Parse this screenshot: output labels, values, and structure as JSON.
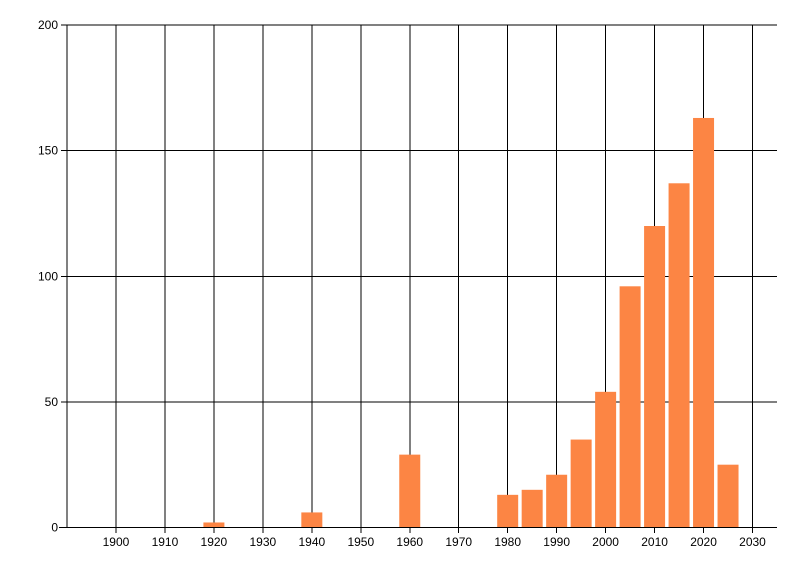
{
  "chart_data": {
    "type": "bar",
    "title": "",
    "xlabel": "",
    "ylabel": "",
    "x": [
      1920,
      1940,
      1960,
      1980,
      1985,
      1990,
      1995,
      2000,
      2005,
      2010,
      2015,
      2020,
      2025
    ],
    "values": [
      2,
      6,
      29,
      13,
      15,
      21,
      35,
      54,
      96,
      120,
      137,
      163,
      25
    ],
    "xlim": [
      1890,
      2035
    ],
    "ylim": [
      0,
      200
    ],
    "x_ticks": [
      1900,
      1910,
      1920,
      1930,
      1940,
      1950,
      1960,
      1970,
      1980,
      1990,
      2000,
      2010,
      2020,
      2030
    ],
    "y_ticks": [
      0,
      50,
      100,
      150,
      200
    ],
    "grid": true,
    "legend_position": "none",
    "bar_color": "#fc8544",
    "axis_color": "#000000",
    "gridline_color": "#000000",
    "tick_label_color": "#000000",
    "background_color": "#ffffff"
  }
}
